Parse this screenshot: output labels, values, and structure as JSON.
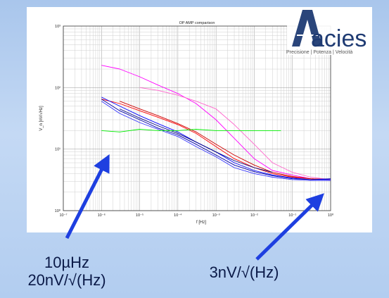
{
  "logo": {
    "text": "acies",
    "tagline": "Precisione | Potenza | Velocità",
    "colors": {
      "mark": "#1f3b73",
      "text": "#1f3b73",
      "tagline": "#555555"
    }
  },
  "annotations": {
    "left": {
      "line1": "10µHz",
      "line2": "20nV/√(Hz)"
    },
    "right": {
      "line1": "3nV/√(Hz)"
    },
    "arrow_color": "#1e3fe0"
  },
  "chart_data": {
    "type": "line",
    "title": "OP AMP comparison",
    "xlabel": "f [Hz]",
    "ylabel": "V_n [nV/√Hz]",
    "x_scale": "log",
    "y_scale": "log",
    "xlim": [
      1e-07,
      1
    ],
    "ylim": [
      1,
      1000
    ],
    "grid": true,
    "x_ticks": [
      {
        "value": 1e-07,
        "label": "10⁻⁷"
      },
      {
        "value": 1e-06,
        "label": "10⁻⁶"
      },
      {
        "value": 1e-05,
        "label": "10⁻⁵"
      },
      {
        "value": 0.0001,
        "label": "10⁻⁴"
      },
      {
        "value": 0.001,
        "label": "10⁻³"
      },
      {
        "value": 0.01,
        "label": "10⁻²"
      },
      {
        "value": 0.1,
        "label": "10⁻¹"
      },
      {
        "value": 1,
        "label": "10⁰"
      }
    ],
    "y_ticks": [
      {
        "value": 1,
        "label": "10⁰"
      },
      {
        "value": 10,
        "label": "10¹"
      },
      {
        "value": 100,
        "label": "10²"
      },
      {
        "value": 1000,
        "label": "10³"
      }
    ],
    "series": [
      {
        "color": "#ff00ff",
        "x": [
          1e-06,
          3e-06,
          1e-05,
          3e-05,
          0.0001,
          0.0003,
          0.001,
          0.003,
          0.01,
          0.03,
          0.1,
          0.3,
          1
        ],
        "y": [
          230,
          200,
          150,
          110,
          80,
          55,
          30,
          15,
          7,
          4.5,
          3.8,
          3.3,
          3.2
        ]
      },
      {
        "color": "#ff66cc",
        "x": [
          1e-05,
          3e-05,
          0.0001,
          0.0003,
          0.001,
          0.003,
          0.01,
          0.03,
          0.1,
          0.3,
          1
        ],
        "y": [
          100,
          90,
          75,
          60,
          45,
          25,
          12,
          6,
          4.2,
          3.5,
          3.2
        ]
      },
      {
        "color": "#ff0000",
        "x": [
          1e-06,
          3e-06,
          1e-05,
          3e-05,
          0.0001,
          0.0003,
          0.001,
          0.003,
          0.01,
          0.03,
          0.1,
          0.3,
          1
        ],
        "y": [
          65,
          55,
          42,
          33,
          25,
          18,
          11,
          7,
          5,
          4,
          3.5,
          3.3,
          3.2
        ]
      },
      {
        "color": "#cc0000",
        "x": [
          3e-06,
          1e-05,
          3e-05,
          0.0001,
          0.0003,
          0.001,
          0.003,
          0.01,
          0.03,
          0.1,
          0.3,
          1
        ],
        "y": [
          60,
          45,
          35,
          26,
          19,
          12,
          8,
          5.5,
          4.2,
          3.6,
          3.3,
          3.2
        ]
      },
      {
        "color": "#0000ff",
        "x": [
          1e-06,
          3e-06,
          1e-05,
          3e-05,
          0.0001,
          0.0003,
          0.001,
          0.003,
          0.01,
          0.03,
          0.1,
          0.3,
          1
        ],
        "y": [
          70,
          50,
          35,
          26,
          19,
          13,
          9,
          6,
          4.5,
          3.8,
          3.4,
          3.2,
          3.2
        ]
      },
      {
        "color": "#0000aa",
        "x": [
          1e-06,
          3e-06,
          1e-05,
          3e-05,
          0.0001,
          0.0003,
          0.001,
          0.003,
          0.01,
          0.03,
          0.1,
          0.3,
          1
        ],
        "y": [
          65,
          42,
          30,
          22,
          17,
          12,
          8,
          5.5,
          4.3,
          3.7,
          3.3,
          3.2,
          3.3
        ]
      },
      {
        "color": "#3333ff",
        "x": [
          1e-06,
          3e-06,
          1e-05,
          3e-05,
          0.0001,
          0.0003,
          0.001,
          0.003,
          0.01,
          0.03,
          0.1,
          0.3,
          1
        ],
        "y": [
          60,
          38,
          27,
          21,
          16,
          11,
          7.5,
          5,
          4,
          3.5,
          3.2,
          3.1,
          3.1
        ]
      },
      {
        "color": "#000080",
        "x": [
          3e-06,
          1e-05,
          3e-05,
          0.0001,
          0.0003,
          0.001,
          0.003,
          0.01,
          0.03
        ],
        "y": [
          45,
          32,
          24,
          18,
          13,
          9,
          6.5,
          5,
          4.2
        ]
      },
      {
        "color": "#00ee00",
        "x": [
          1e-06,
          3e-06,
          1e-05,
          3e-05,
          0.0001,
          0.0003,
          0.001,
          0.003,
          0.01,
          0.03,
          0.05
        ],
        "y": [
          20,
          19,
          21,
          20,
          20,
          21,
          20,
          20,
          20,
          20,
          20
        ]
      }
    ]
  }
}
